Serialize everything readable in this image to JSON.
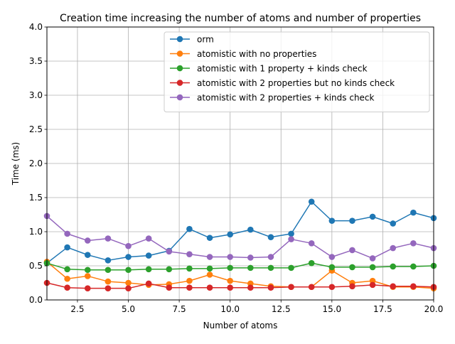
{
  "chart_data": {
    "type": "line",
    "title": "Creation time increasing the number of atoms and number of properties",
    "xlabel": "Number of atoms",
    "ylabel": "Time (ms)",
    "xlim": [
      1,
      20
    ],
    "ylim": [
      0,
      4
    ],
    "xticks": [
      2.5,
      5.0,
      7.5,
      10.0,
      12.5,
      15.0,
      17.5,
      20.0
    ],
    "xtick_labels": [
      "2.5",
      "5.0",
      "7.5",
      "10.0",
      "12.5",
      "15.0",
      "17.5",
      "20.0"
    ],
    "yticks": [
      0,
      0.5,
      1.0,
      1.5,
      2.0,
      2.5,
      3.0,
      3.5,
      4.0
    ],
    "ytick_labels": [
      "0.0",
      "0.5",
      "1.0",
      "1.5",
      "2.0",
      "2.5",
      "3.0",
      "3.5",
      "4.0"
    ],
    "grid": true,
    "legend_position": "top-right",
    "x": [
      1,
      2,
      3,
      4,
      5,
      6,
      7,
      8,
      9,
      10,
      11,
      12,
      13,
      14,
      15,
      16,
      17,
      18,
      19,
      20
    ],
    "series": [
      {
        "name": "orm",
        "color": "#1f77b4",
        "values": [
          0.54,
          0.77,
          0.66,
          0.58,
          0.63,
          0.65,
          0.72,
          1.04,
          0.91,
          0.96,
          1.03,
          0.92,
          0.97,
          1.44,
          1.16,
          1.16,
          1.22,
          1.12,
          1.28,
          1.2
        ]
      },
      {
        "name": "atomistic with no properties",
        "color": "#ff7f0e",
        "values": [
          0.56,
          0.31,
          0.35,
          0.27,
          0.25,
          0.22,
          0.23,
          0.28,
          0.37,
          0.28,
          0.24,
          0.2,
          0.19,
          0.19,
          0.43,
          0.25,
          0.28,
          0.19,
          0.19,
          0.17
        ]
      },
      {
        "name": "atomistic with 1 property + kinds check",
        "color": "#2ca02c",
        "values": [
          0.54,
          0.45,
          0.44,
          0.44,
          0.44,
          0.45,
          0.45,
          0.46,
          0.46,
          0.47,
          0.47,
          0.47,
          0.47,
          0.54,
          0.48,
          0.48,
          0.48,
          0.49,
          0.49,
          0.5
        ]
      },
      {
        "name": "atomistic with 2 properties but no kinds check",
        "color": "#d62728",
        "values": [
          0.25,
          0.18,
          0.17,
          0.17,
          0.17,
          0.24,
          0.18,
          0.18,
          0.18,
          0.18,
          0.18,
          0.18,
          0.19,
          0.19,
          0.19,
          0.2,
          0.22,
          0.2,
          0.2,
          0.19
        ]
      },
      {
        "name": "atomistic with 2 properties + kinds check",
        "color": "#9467bd",
        "values": [
          1.23,
          0.97,
          0.87,
          0.9,
          0.79,
          0.9,
          0.71,
          0.67,
          0.63,
          0.63,
          0.62,
          0.63,
          0.89,
          0.83,
          0.63,
          0.73,
          0.61,
          0.76,
          0.83,
          0.76
        ]
      }
    ]
  }
}
